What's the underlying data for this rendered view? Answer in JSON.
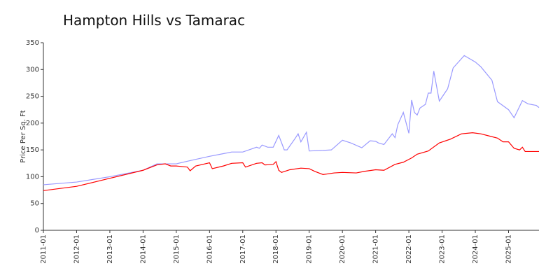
{
  "chart_data": {
    "type": "line",
    "title": "Hampton Hills vs Tamarac",
    "y_label": "Price Per Sq. Ft",
    "xlim": [
      "2011-01",
      "2025-12"
    ],
    "xticks": [
      "2011-01",
      "2012-01",
      "2013-01",
      "2014-01",
      "2015-01",
      "2016-01",
      "2017-01",
      "2018-01",
      "2019-01",
      "2020-01",
      "2021-01",
      "2022-01",
      "2023-01",
      "2024-01",
      "2025-01"
    ],
    "ylim": [
      0,
      350
    ],
    "yticks": [
      0,
      50,
      100,
      150,
      200,
      250,
      300,
      350
    ],
    "series": [
      {
        "color": "#9999ff",
        "x": [
          "2011-01",
          "2012-01",
          "2013-01",
          "2014-01",
          "2014-06",
          "2015-01",
          "2015-06",
          "2016-01",
          "2016-06",
          "2016-09",
          "2017-01",
          "2017-06",
          "2017-07",
          "2017-08",
          "2017-10",
          "2017-12",
          "2018-02",
          "2018-04",
          "2018-05",
          "2018-08",
          "2018-09",
          "2018-10",
          "2018-12",
          "2019-01",
          "2019-06",
          "2019-09",
          "2020-01",
          "2020-04",
          "2020-08",
          "2020-11",
          "2021-01",
          "2021-02",
          "2021-04",
          "2021-07",
          "2021-08",
          "2021-09",
          "2021-11",
          "2022-01",
          "2022-02",
          "2022-03",
          "2022-04",
          "2022-05",
          "2022-07",
          "2022-08",
          "2022-09",
          "2022-10",
          "2022-12",
          "2023-03",
          "2023-05",
          "2023-09",
          "2024-01",
          "2024-03",
          "2024-07",
          "2024-09",
          "2025-01",
          "2025-03",
          "2025-06",
          "2025-08",
          "2025-11",
          "2025-12"
        ],
        "values": [
          85,
          90,
          100,
          112,
          124,
          124,
          130,
          138,
          143,
          146,
          146,
          155,
          153,
          159,
          155,
          155,
          177,
          150,
          150,
          172,
          180,
          165,
          183,
          148,
          149,
          150,
          168,
          163,
          154,
          167,
          166,
          163,
          160,
          180,
          173,
          197,
          220,
          181,
          243,
          220,
          215,
          228,
          235,
          256,
          256,
          297,
          241,
          264,
          303,
          326,
          314,
          305,
          280,
          240,
          225,
          210,
          242,
          236,
          233,
          229
        ]
      },
      {
        "color": "#ff0000",
        "x": [
          "2011-01",
          "2012-01",
          "2013-01",
          "2014-01",
          "2014-06",
          "2014-09",
          "2014-11",
          "2015-01",
          "2015-05",
          "2015-06",
          "2015-08",
          "2016-01",
          "2016-02",
          "2016-06",
          "2016-09",
          "2017-01",
          "2017-02",
          "2017-06",
          "2017-08",
          "2017-09",
          "2017-12",
          "2018-01",
          "2018-02",
          "2018-03",
          "2018-06",
          "2018-10",
          "2019-01",
          "2019-03",
          "2019-06",
          "2019-10",
          "2020-01",
          "2020-06",
          "2020-09",
          "2021-01",
          "2021-04",
          "2021-08",
          "2021-11",
          "2022-02",
          "2022-04",
          "2022-08",
          "2022-12",
          "2023-04",
          "2023-08",
          "2023-12",
          "2024-03",
          "2024-06",
          "2024-09",
          "2024-11",
          "2025-01",
          "2025-03",
          "2025-05",
          "2025-06",
          "2025-07",
          "2025-12"
        ],
        "values": [
          74,
          82,
          97,
          112,
          122,
          124,
          120,
          120,
          118,
          111,
          120,
          126,
          115,
          120,
          125,
          126,
          118,
          125,
          126,
          122,
          123,
          128,
          112,
          108,
          113,
          116,
          115,
          110,
          104,
          107,
          108,
          107,
          110,
          113,
          112,
          123,
          127,
          135,
          142,
          148,
          163,
          170,
          180,
          182,
          180,
          176,
          172,
          165,
          165,
          153,
          150,
          155,
          147,
          147
        ]
      }
    ]
  }
}
